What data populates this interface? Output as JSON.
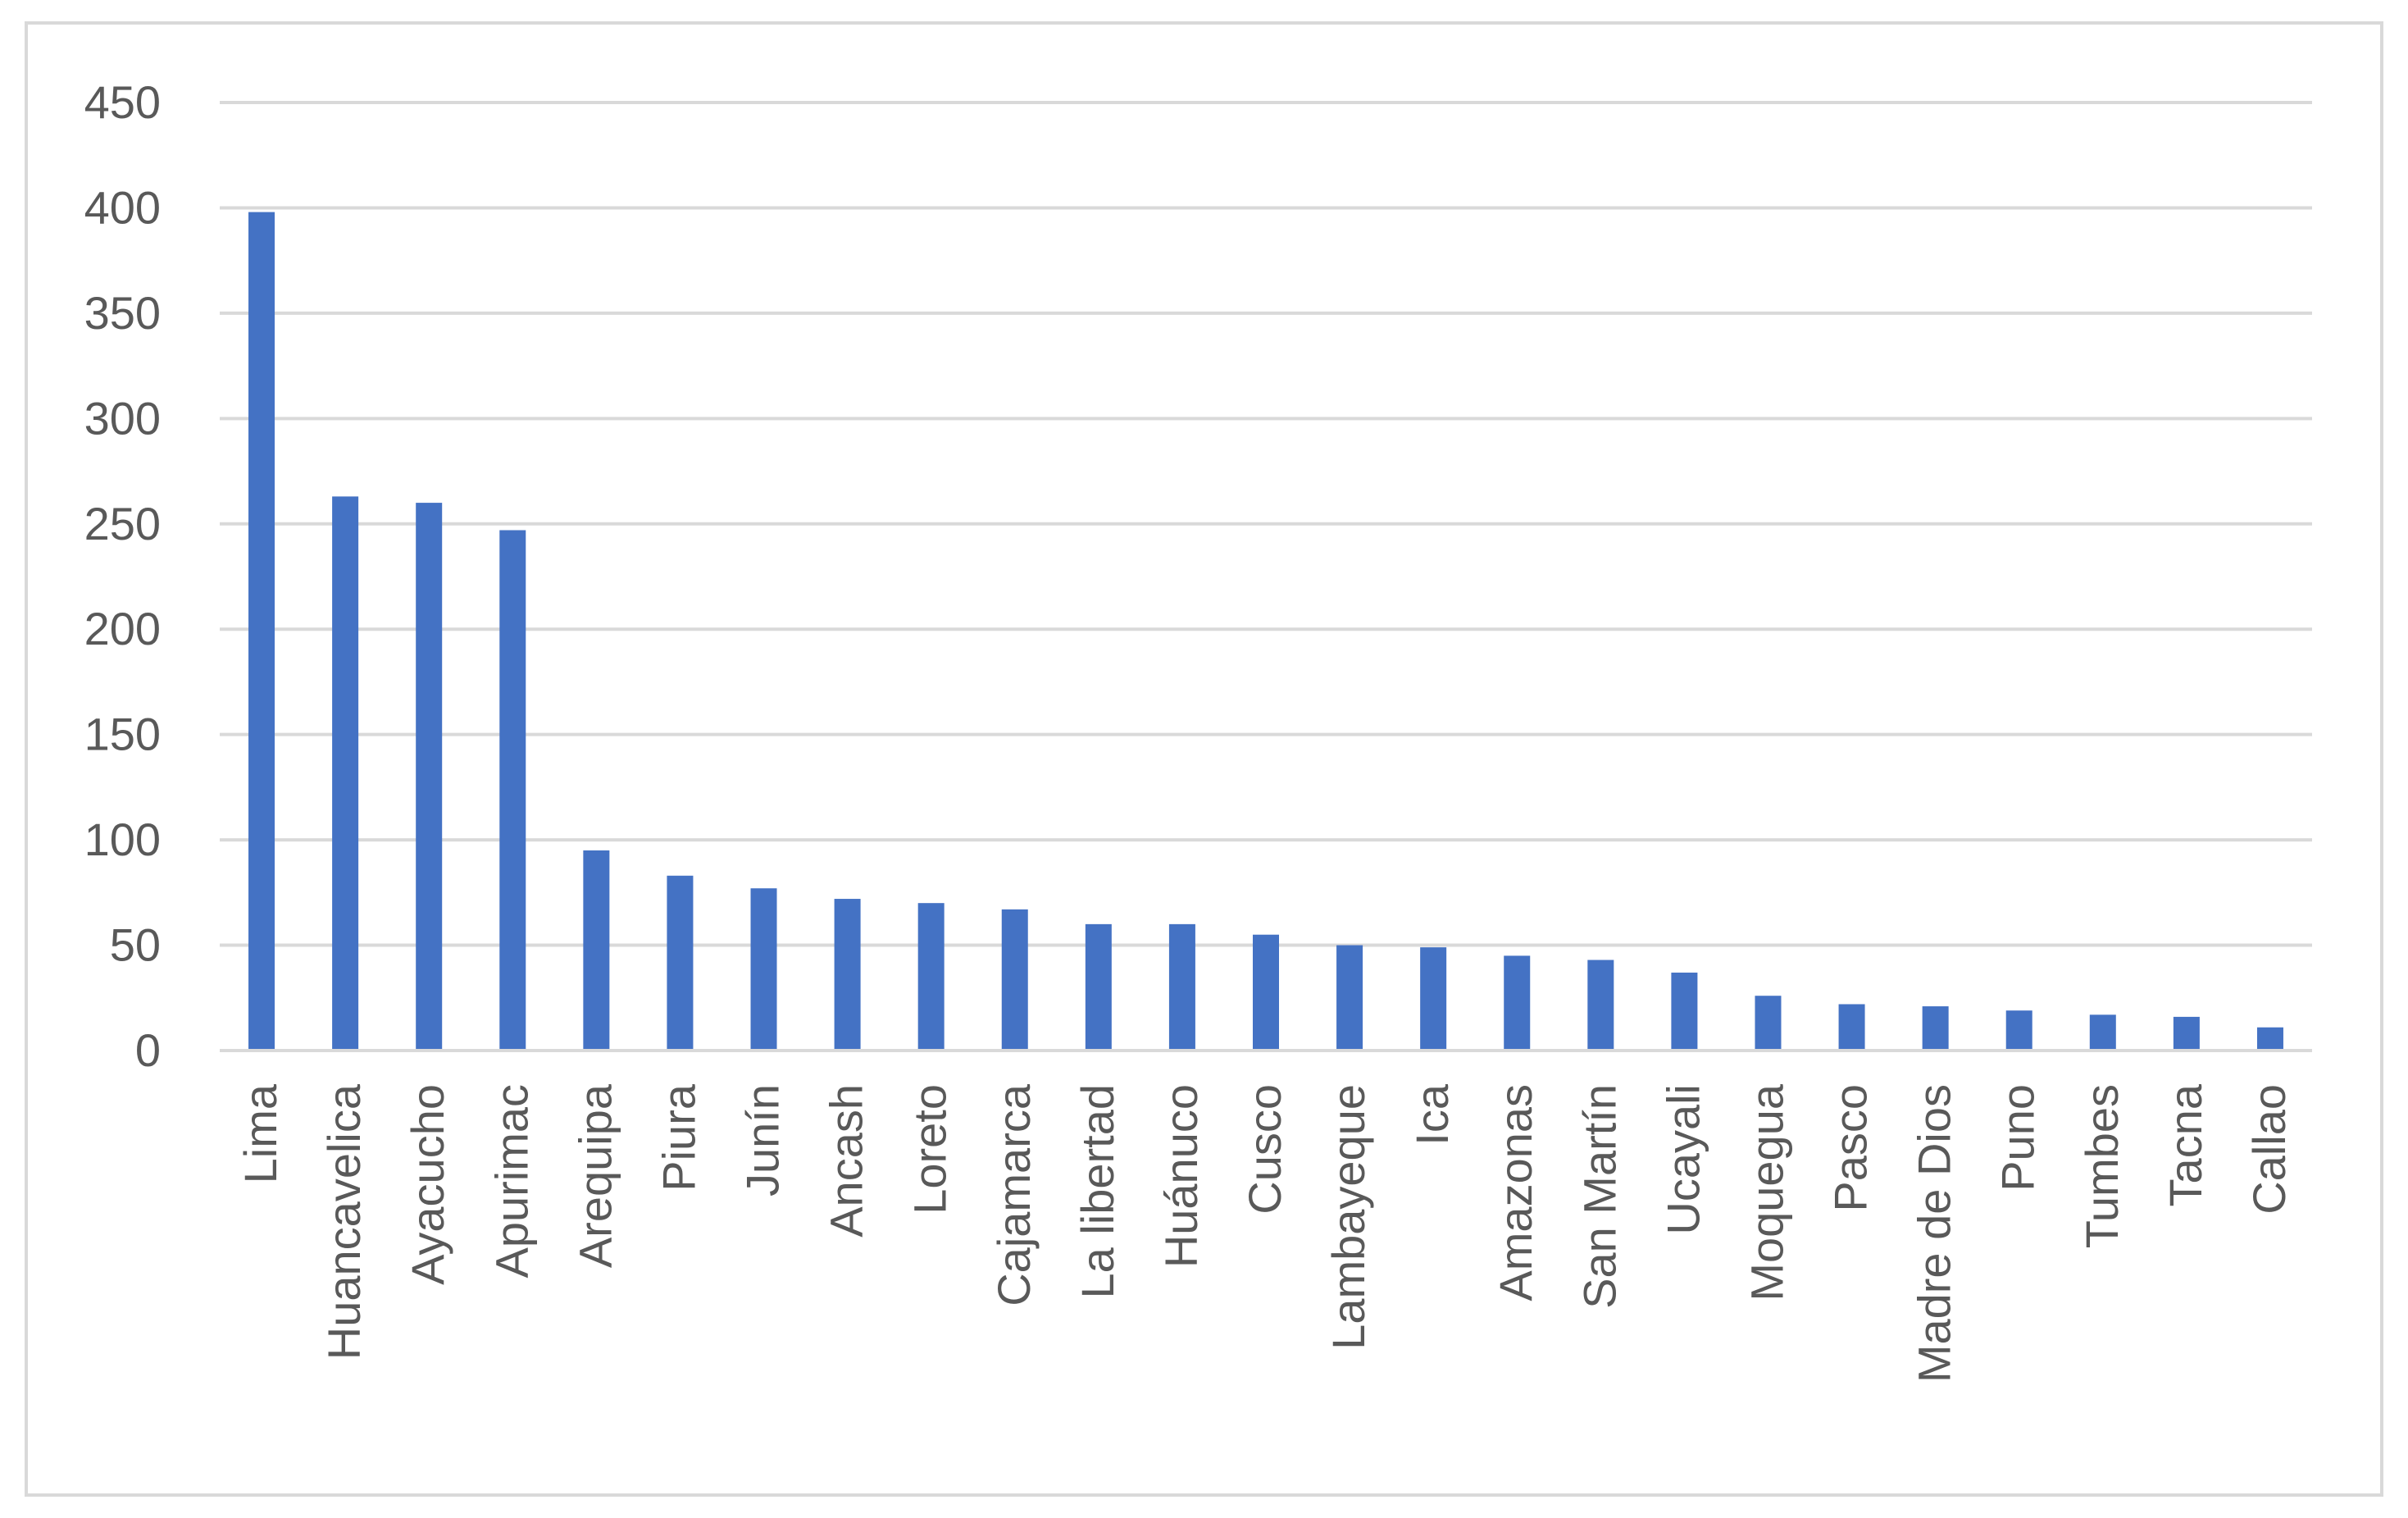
{
  "chart_data": {
    "type": "bar",
    "title": "",
    "xlabel": "",
    "ylabel": "",
    "ylim": [
      0,
      450
    ],
    "yticks": [
      0,
      50,
      100,
      150,
      200,
      250,
      300,
      350,
      400,
      450
    ],
    "grid": true,
    "legend": "none",
    "bar_color": "#4472c4",
    "grid_color": "#d9d9d9",
    "text_color": "#595959",
    "categories": [
      "Lima",
      "Huancavelica",
      "Ayacucho",
      "Apurimac",
      "Arequipa",
      "Piura",
      "Junín",
      "Ancash",
      "Loreto",
      "Cajamarca",
      "La libertad",
      "Huánuco",
      "Cusco",
      "Lambayeque",
      "Ica",
      "Amazonas",
      "San Martín",
      "Ucayali",
      "Moquegua",
      "Pasco",
      "Madre de Dios",
      "Puno",
      "Tumbes",
      "Tacna",
      "Callao"
    ],
    "values": [
      398,
      263,
      260,
      247,
      95,
      83,
      77,
      72,
      70,
      67,
      60,
      60,
      55,
      50,
      49,
      45,
      43,
      37,
      26,
      22,
      21,
      19,
      17,
      16,
      11
    ]
  }
}
